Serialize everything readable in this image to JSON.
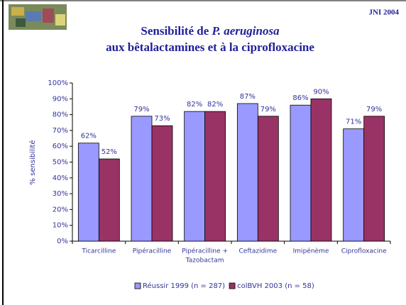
{
  "header": {
    "tag": "JNI 2004"
  },
  "chart_data": {
    "type": "bar",
    "title_parts": [
      "Sensibilité de ",
      "P. aeruginosa"
    ],
    "subtitle": "aux bêtalactamines et à la ciprofloxacine",
    "y_label": "% sensibilité",
    "categories": [
      [
        "Ticarcilline"
      ],
      [
        "Pipéracilline"
      ],
      [
        "Pipéracilline +",
        "Tazobactam"
      ],
      [
        "Ceftazidime"
      ],
      [
        "Imipénème"
      ],
      [
        "Ciprofloxacine"
      ]
    ],
    "series": [
      {
        "name": "Réussir 1999 (n = 287)",
        "color": "#9999ff",
        "values": [
          62,
          79,
          82,
          87,
          86,
          71
        ],
        "value_labels": [
          "62%",
          "79%",
          "82%",
          "87%",
          "86%",
          "71%"
        ]
      },
      {
        "name": "colBVH 2003 (n = 58)",
        "color": "#993366",
        "values": [
          52,
          73,
          82,
          79,
          90,
          79
        ],
        "value_labels": [
          "52%",
          "73%",
          "82%",
          "79%",
          "90%",
          "79%"
        ]
      }
    ],
    "ylim": [
      0,
      100
    ],
    "yticks": [
      {
        "value": 0,
        "label": "0%"
      },
      {
        "value": 10,
        "label": "10%"
      },
      {
        "value": 20,
        "label": "20%"
      },
      {
        "value": 30,
        "label": "30%"
      },
      {
        "value": 40,
        "label": "40%"
      },
      {
        "value": 50,
        "label": "50%"
      },
      {
        "value": 60,
        "label": "60%"
      },
      {
        "value": 70,
        "label": "70%"
      },
      {
        "value": 80,
        "label": "80%"
      },
      {
        "value": 90,
        "label": "90%"
      },
      {
        "value": 100,
        "label": "100%"
      }
    ],
    "legend": "bottom"
  }
}
